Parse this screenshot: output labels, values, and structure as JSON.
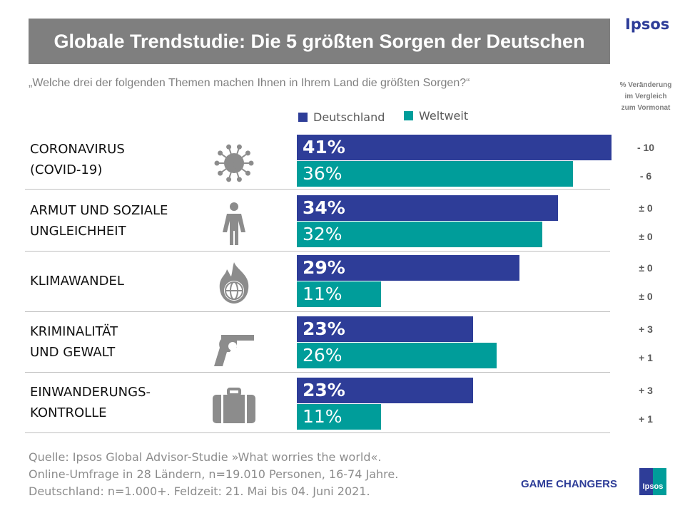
{
  "title": "Globale Trendstudie: Die 5 größten Sorgen der Deutschen",
  "logo": "Ipsos",
  "question": "„Welche drei der folgenden Themen machen Ihnen in Ihrem Land die größten Sorgen?“",
  "change_header": [
    "% Veränderung",
    "im Vergleich",
    "zum Vormonat"
  ],
  "colors": {
    "deutschland": "#2e3d98",
    "weltweit": "#009d9a"
  },
  "chart_data": {
    "type": "bar",
    "orientation": "horizontal",
    "legend": [
      "Deutschland",
      "Weltweit"
    ],
    "categories": [
      {
        "label": [
          "CORONAVIRUS",
          "(COVID-19)"
        ],
        "icon": "virus-icon",
        "values": [
          41,
          36
        ],
        "labels": [
          "41%",
          "36%"
        ],
        "changes": [
          "- 10",
          "- 6"
        ]
      },
      {
        "label": [
          "ARMUT UND SOZIALE",
          "UNGLEICHHEIT"
        ],
        "icon": "poor-person-icon",
        "values": [
          34,
          32
        ],
        "labels": [
          "34%",
          "32%"
        ],
        "changes": [
          "± 0",
          "± 0"
        ]
      },
      {
        "label": [
          "KLIMAWANDEL"
        ],
        "icon": "burning-globe-icon",
        "values": [
          29,
          11
        ],
        "labels": [
          "29%",
          "11%"
        ],
        "changes": [
          "± 0",
          "± 0"
        ]
      },
      {
        "label": [
          "KRIMINALITÄT",
          "UND GEWALT"
        ],
        "icon": "revolver-icon",
        "values": [
          23,
          26
        ],
        "labels": [
          "23%",
          "26%"
        ],
        "changes": [
          "+ 3",
          "+ 1"
        ]
      },
      {
        "label": [
          "EINWANDERUNGS-",
          "KONTROLLE"
        ],
        "icon": "suitcase-icon",
        "values": [
          23,
          11
        ],
        "labels": [
          "23%",
          "11%"
        ],
        "changes": [
          "+ 3",
          "+ 1"
        ]
      }
    ]
  },
  "source": [
    "Quelle: Ipsos Global Advisor-Studie »What worries the world«.",
    "Online-Umfrage in 28 Ländern, n=19.010 Personen, 16-74 Jahre.",
    "Deutschland: n=1.000+. Feldzeit: 21. Mai bis 04. Juni 2021."
  ],
  "footer": {
    "tagline": "GAME CHANGERS",
    "logo": "Ipsos"
  }
}
